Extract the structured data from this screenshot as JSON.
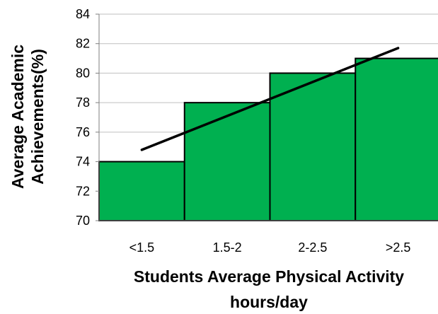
{
  "chart_data": {
    "type": "bar",
    "title": "",
    "categories": [
      "<1.5",
      "1.5-2",
      "2-2.5",
      ">2.5"
    ],
    "values": [
      74,
      78,
      80,
      81
    ],
    "ylim": [
      70,
      84
    ],
    "yticks": [
      70,
      72,
      74,
      76,
      78,
      80,
      82,
      84
    ],
    "xlabel_lines": [
      "Students Average Physical Activity",
      "hours/day"
    ],
    "ylabel_lines": [
      "Average Academic",
      "Achievements(%)"
    ],
    "grid": "horizontal",
    "legend": "none",
    "trendline": {
      "type": "linear",
      "start": 74.8,
      "end": 81.7
    },
    "colors": {
      "bar_fill": "#00B050",
      "bar_stroke": "#000000",
      "trendline": "#000000",
      "gridline": "#BFBFBF"
    }
  }
}
